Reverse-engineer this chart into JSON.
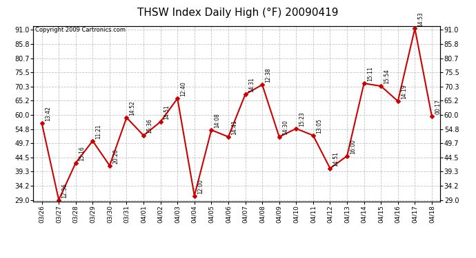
{
  "title": "THSW Index Daily High (°F) 20090419",
  "copyright": "Copyright 2009 Cartronics.com",
  "x_labels": [
    "03/26",
    "03/27",
    "03/28",
    "03/29",
    "03/30",
    "03/31",
    "04/01",
    "04/02",
    "04/03",
    "04/04",
    "04/05",
    "04/06",
    "04/07",
    "04/08",
    "04/09",
    "04/10",
    "04/11",
    "04/12",
    "04/13",
    "04/14",
    "04/15",
    "04/16",
    "04/17",
    "04/18"
  ],
  "y_values": [
    57.0,
    29.0,
    42.5,
    50.5,
    41.5,
    59.0,
    52.5,
    57.5,
    66.0,
    30.5,
    54.5,
    52.0,
    67.5,
    71.0,
    52.0,
    55.0,
    52.5,
    40.5,
    45.0,
    71.5,
    70.5,
    65.0,
    91.5,
    59.5
  ],
  "point_labels": [
    "13:42",
    "12:36",
    "15:16",
    "11:21",
    "20:20",
    "14:52",
    "15:36",
    "14:51",
    "12:40",
    "12:00",
    "14:08",
    "14:41",
    "14:31",
    "12:38",
    "14:30",
    "15:23",
    "13:05",
    "14:51",
    "16:00",
    "15:11",
    "15:54",
    "14:19",
    "14:53",
    "00:17"
  ],
  "line_color": "#cc0000",
  "marker_color": "#cc0000",
  "bg_color": "#ffffff",
  "grid_color": "#bbbbbb",
  "title_fontsize": 11,
  "ylim_min": 29.0,
  "ylim_max": 91.0,
  "yticks": [
    29.0,
    34.2,
    39.3,
    44.5,
    49.7,
    54.8,
    60.0,
    65.2,
    70.3,
    75.5,
    80.7,
    85.8,
    91.0
  ]
}
